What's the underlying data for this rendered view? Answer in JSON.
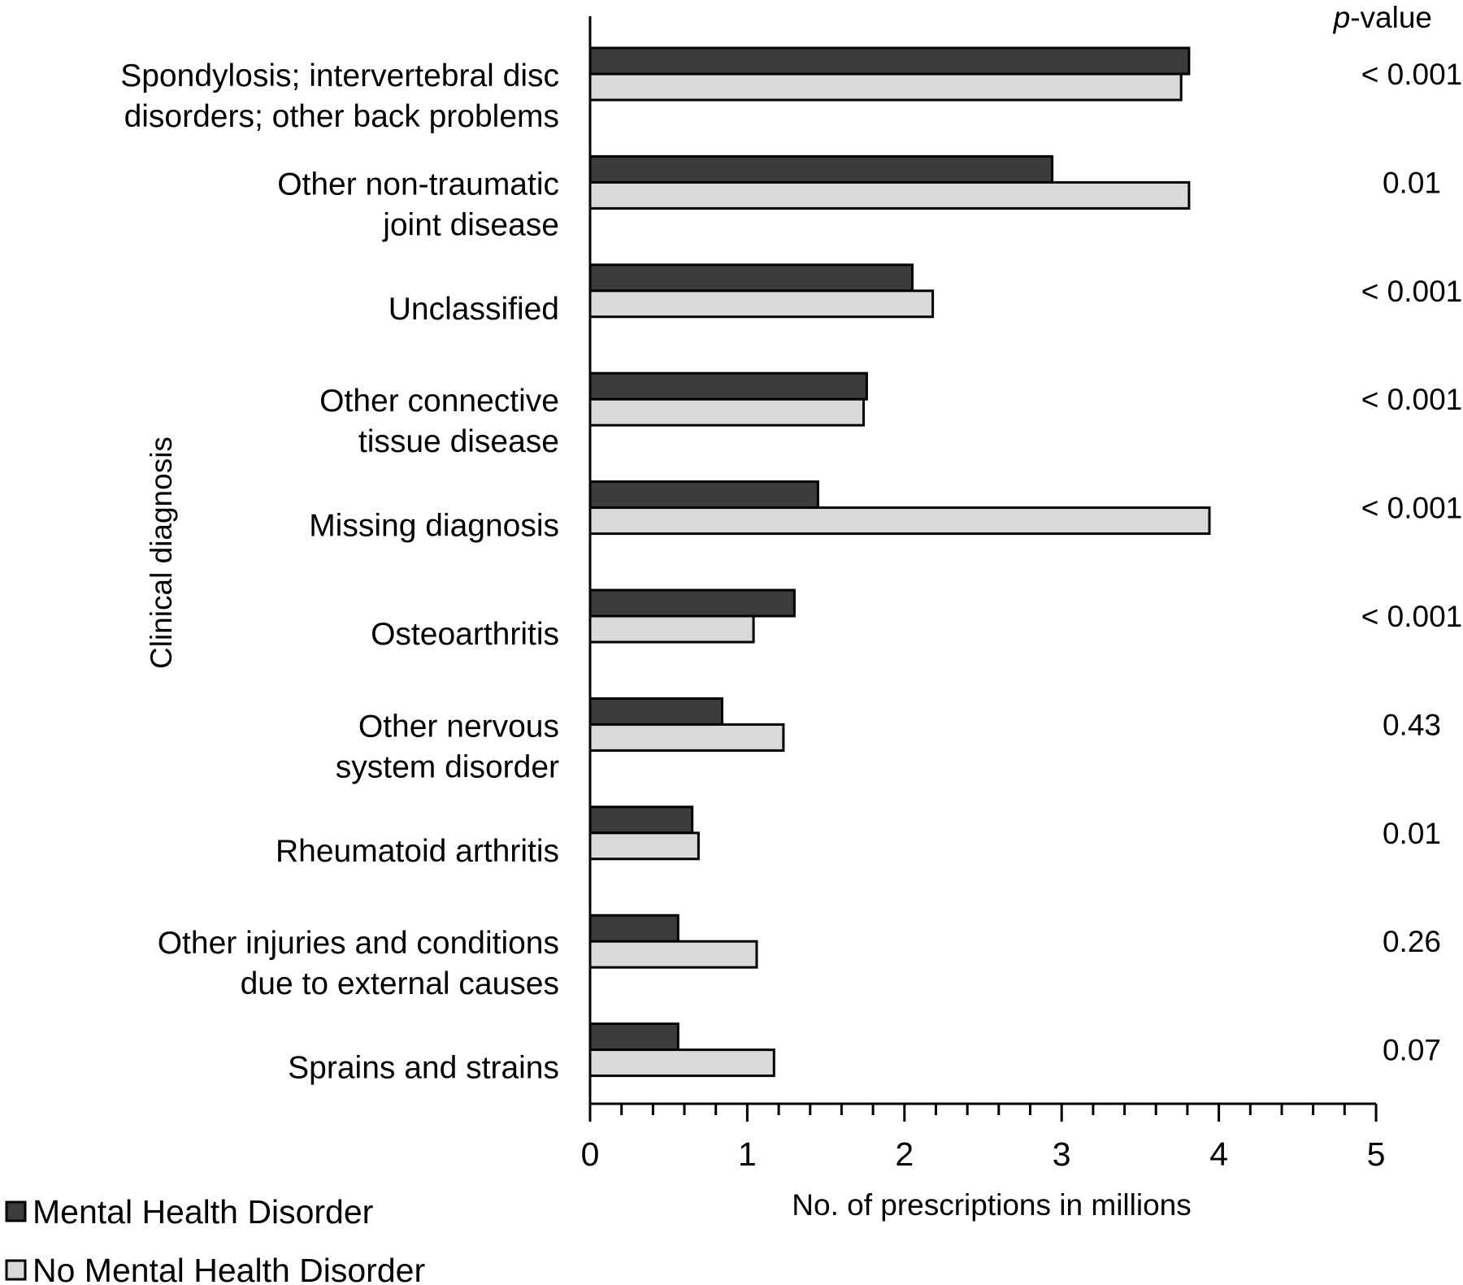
{
  "chart_data": {
    "type": "bar",
    "orientation": "horizontal",
    "categories": [
      [
        "Spondylosis; intervertebral disc",
        "disorders; other back problems"
      ],
      [
        "Other non-traumatic",
        "joint disease"
      ],
      [
        "Unclassified"
      ],
      [
        "Other connective",
        "tissue disease"
      ],
      [
        "Missing diagnosis"
      ],
      [
        "Osteoarthritis"
      ],
      [
        "Other nervous",
        "system disorder"
      ],
      [
        "Rheumatoid arthritis"
      ],
      [
        "Other injuries and conditions",
        "due to external causes"
      ],
      [
        "Sprains and strains"
      ]
    ],
    "series": [
      {
        "name": "Mental Health Disorder",
        "color": "#3c3c3c",
        "values": [
          3.81,
          2.94,
          2.05,
          1.76,
          1.45,
          1.3,
          0.84,
          0.65,
          0.56,
          0.56
        ]
      },
      {
        "name": "No Mental Health Disorder",
        "color": "#d9d9d9",
        "values": [
          3.76,
          3.81,
          2.18,
          1.74,
          3.94,
          1.04,
          1.23,
          0.69,
          1.06,
          1.17
        ]
      }
    ],
    "p_value_header": "p-value",
    "p_values": [
      "< 0.001",
      "0.01",
      "< 0.001",
      "< 0.001",
      "< 0.001",
      "< 0.001",
      "0.43",
      "0.01",
      "0.26",
      "0.07"
    ],
    "xlabel": "No. of prescriptions in millions",
    "ylabel": "Clinical diagnosis",
    "xlim": [
      0,
      5
    ],
    "xticks": [
      "0",
      "1",
      "2",
      "3",
      "4",
      "5"
    ],
    "minor_ticks_per_unit": 5,
    "grid": false,
    "legend_position": "bottom-left"
  }
}
